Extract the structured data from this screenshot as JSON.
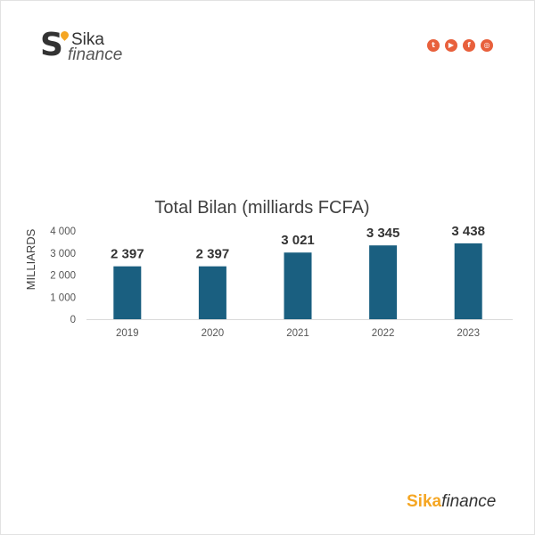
{
  "header": {
    "logo_letter": "S",
    "logo_line1": "Sika",
    "logo_line2": "finance",
    "social_icons": [
      "twitter-icon",
      "youtube-icon",
      "facebook-icon",
      "instagram-icon"
    ],
    "social_color": "#e8603c"
  },
  "chart_data": {
    "type": "bar",
    "title": "Total Bilan (milliards FCFA)",
    "ylabel": "MILLIARDS",
    "xlabel": "",
    "categories": [
      "2019",
      "2020",
      "2021",
      "2022",
      "2023"
    ],
    "values": [
      2397,
      2397,
      3021,
      3345,
      3438
    ],
    "data_labels": [
      "2 397",
      "2 397",
      "3 021",
      "3 345",
      "3 438"
    ],
    "ylim": [
      0,
      4000
    ],
    "yticks": [
      0,
      1000,
      2000,
      3000,
      4000
    ],
    "ytick_labels": [
      "0",
      "1 000",
      "2 000",
      "3 000",
      "4 000"
    ],
    "bar_color": "#1a5f80",
    "grid": false,
    "legend": "none"
  },
  "footer": {
    "brand_part1": "Sika",
    "brand_part2": "finance",
    "brand_color": "#f5a623"
  }
}
